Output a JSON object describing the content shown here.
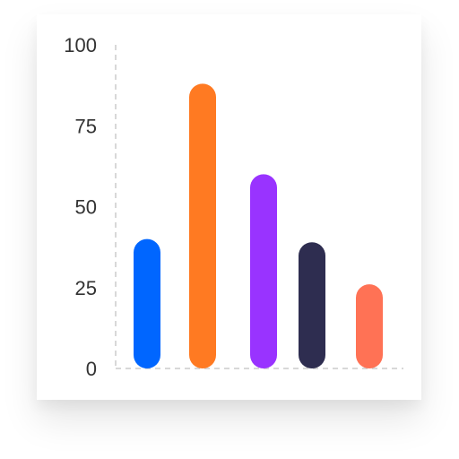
{
  "chart_data": {
    "type": "bar",
    "title": "",
    "xlabel": "",
    "ylabel": "",
    "ylim": [
      0,
      100
    ],
    "yticks": [
      "0",
      "25",
      "50",
      "75",
      "100"
    ],
    "categories": [
      "",
      "",
      "",
      "",
      ""
    ],
    "values": [
      40,
      88,
      60,
      39,
      26
    ],
    "colors": [
      "#0066ff",
      "#ff7a22",
      "#9933ff",
      "#2e2d50",
      "#ff7255"
    ],
    "grid": false,
    "legend": "none",
    "axis_color": "#cccccc",
    "axis_style": "dashed"
  }
}
